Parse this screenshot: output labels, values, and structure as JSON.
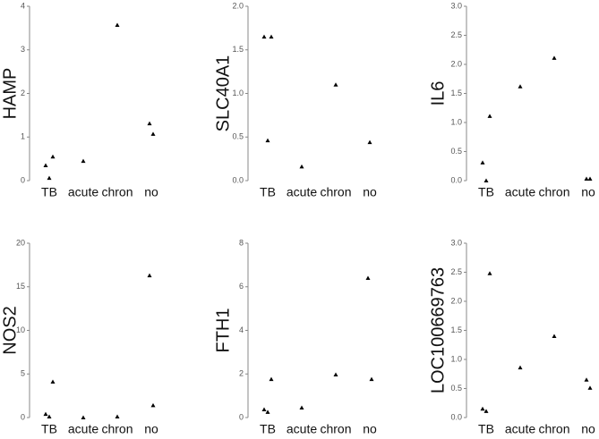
{
  "chart_data": [
    {
      "type": "strip",
      "ylabel": "HAMP",
      "categories": [
        "TB",
        "acute",
        "chron",
        "no"
      ],
      "values": [
        [
          0.35,
          0.06,
          0.55
        ],
        [
          0.45
        ],
        [
          3.57
        ],
        [
          1.31,
          1.07
        ]
      ],
      "ylim": [
        0,
        4
      ],
      "yticks": [
        0,
        1,
        2,
        3,
        4
      ],
      "color": "#000000",
      "grid": false
    },
    {
      "type": "strip",
      "ylabel": "SLC40A1",
      "categories": [
        "TB",
        "acute",
        "chron",
        "no"
      ],
      "values": [
        [
          1.65,
          0.46,
          1.65
        ],
        [
          0.16
        ],
        [
          1.1
        ],
        [
          0.44
        ]
      ],
      "ylim": [
        0,
        2
      ],
      "yticks": [
        {
          "value": 0,
          "label": "0.0"
        },
        0.5,
        {
          "value": 1,
          "label": "1.0"
        },
        1.5,
        {
          "value": 2,
          "label": "2.0"
        }
      ],
      "color": "#000000",
      "grid": false
    },
    {
      "type": "strip",
      "ylabel": "IL6",
      "categories": [
        "TB",
        "acute",
        "chron",
        "no"
      ],
      "values": [
        [
          0.31,
          0.0,
          1.11
        ],
        [
          1.62
        ],
        [
          2.11
        ],
        [
          0.03,
          0.03
        ]
      ],
      "ylim": [
        0,
        3
      ],
      "yticks": [
        {
          "value": 0,
          "label": "0.0"
        },
        0.5,
        {
          "value": 1,
          "label": "1.0"
        },
        1.5,
        {
          "value": 2,
          "label": "2.0"
        },
        2.5,
        {
          "value": 3,
          "label": "3.0"
        }
      ],
      "color": "#000000",
      "grid": false
    },
    {
      "type": "strip",
      "ylabel": "NOS2",
      "categories": [
        "TB",
        "acute",
        "chron",
        "no"
      ],
      "values": [
        [
          0.4,
          0.1,
          4.1
        ],
        [
          0.0
        ],
        [
          0.1
        ],
        [
          16.3,
          1.4
        ]
      ],
      "ylim": [
        0,
        20
      ],
      "yticks": [
        0,
        5,
        10,
        15,
        20
      ],
      "color": "#000000",
      "grid": false
    },
    {
      "type": "strip",
      "ylabel": "FTH1",
      "categories": [
        "TB",
        "acute",
        "chron",
        "no"
      ],
      "values": [
        [
          0.37,
          0.25,
          1.76
        ],
        [
          0.45
        ],
        [
          1.97
        ],
        [
          6.4,
          1.76
        ]
      ],
      "ylim": [
        0,
        8
      ],
      "yticks": [
        0,
        2,
        4,
        6,
        8
      ],
      "color": "#000000",
      "grid": false
    },
    {
      "type": "strip",
      "ylabel": "LOC100669763",
      "categories": [
        "TB",
        "acute",
        "chron",
        "no"
      ],
      "values": [
        [
          0.15,
          0.11,
          2.48
        ],
        [
          0.86
        ],
        [
          1.4
        ],
        [
          0.65,
          0.51
        ]
      ],
      "ylim": [
        0,
        3
      ],
      "yticks": [
        {
          "value": 0,
          "label": "0.0"
        },
        0.5,
        {
          "value": 1,
          "label": "1.0"
        },
        1.5,
        {
          "value": 2,
          "label": "2.0"
        },
        2.5,
        {
          "value": 3,
          "label": "3.0"
        }
      ],
      "color": "#000000",
      "grid": false
    }
  ]
}
